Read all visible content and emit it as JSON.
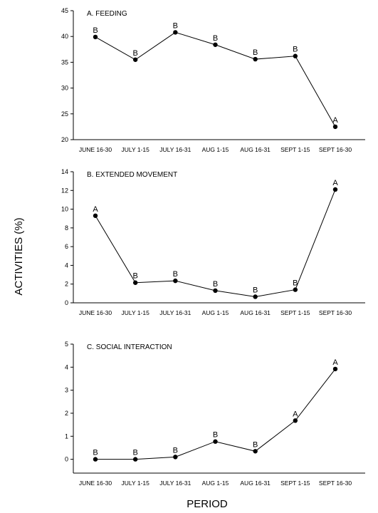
{
  "chart_data": {
    "type": "line",
    "shared_ylabel": "ACTIVITIES (%)",
    "shared_xlabel": "PERIOD",
    "categories": [
      "JUNE 16-30",
      "JULY 1-15",
      "JULY 16-31",
      "AUG 1-15",
      "AUG 16-31",
      "SEPT 1-15",
      "SEPT 16-30"
    ],
    "line_color": "#000000",
    "marker_color": "#000000",
    "grid": false,
    "legend": "none",
    "panels": [
      {
        "title": "A. FEEDING",
        "ylim": [
          20,
          45
        ],
        "yticks": [
          20,
          25,
          30,
          35,
          40,
          45
        ],
        "values": [
          39.9,
          35.5,
          40.8,
          38.4,
          35.6,
          36.2,
          22.5
        ],
        "point_labels": [
          "B",
          "B",
          "B",
          "B",
          "B",
          "B",
          "A"
        ]
      },
      {
        "title": "B. EXTENDED MOVEMENT",
        "ylim": [
          0,
          14
        ],
        "yticks": [
          0,
          2,
          4,
          6,
          8,
          10,
          12,
          14
        ],
        "values": [
          9.3,
          2.15,
          2.35,
          1.3,
          0.65,
          1.4,
          12.1
        ],
        "point_labels": [
          "A",
          "B",
          "B",
          "B",
          "B",
          "B",
          "A"
        ]
      },
      {
        "title": "C. SOCIAL INTERACTION",
        "ylim": [
          -0.6,
          5
        ],
        "yticks": [
          0,
          1,
          2,
          3,
          4,
          5
        ],
        "values": [
          0,
          0,
          0.1,
          0.77,
          0.35,
          1.68,
          3.92
        ],
        "point_labels": [
          "B",
          "B",
          "B",
          "B",
          "B",
          "A",
          "A"
        ]
      }
    ]
  }
}
